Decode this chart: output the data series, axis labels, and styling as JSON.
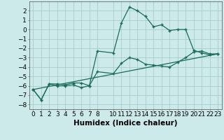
{
  "xlabel": "Humidex (Indice chaleur)",
  "background_color": "#cceaea",
  "grid_color": "#aacccc",
  "line_color": "#1a6b5a",
  "series1_x": [
    0,
    1,
    2,
    3,
    4,
    5,
    6,
    7,
    8,
    10,
    11,
    12,
    13,
    14,
    15,
    16,
    17,
    18,
    19,
    20,
    21,
    22,
    23
  ],
  "series1_y": [
    -6.4,
    -7.5,
    -5.8,
    -5.8,
    -5.9,
    -5.7,
    -5.7,
    -6.0,
    -2.3,
    -2.5,
    0.7,
    2.4,
    2.0,
    1.4,
    0.3,
    0.5,
    -0.1,
    0.0,
    0.0,
    -2.2,
    -2.5,
    -2.7,
    -2.6
  ],
  "series2_x": [
    0,
    1,
    2,
    3,
    4,
    5,
    6,
    7,
    8,
    10,
    11,
    12,
    13,
    14,
    15,
    16,
    17,
    18,
    19,
    20,
    21,
    22,
    23
  ],
  "series2_y": [
    -6.4,
    -7.5,
    -5.8,
    -6.0,
    -6.0,
    -5.9,
    -6.2,
    -6.0,
    -4.5,
    -4.7,
    -3.6,
    -3.0,
    -3.2,
    -3.7,
    -3.8,
    -3.9,
    -4.0,
    -3.5,
    -3.0,
    -2.4,
    -2.3,
    -2.6,
    -2.6
  ],
  "series3_x": [
    0,
    23
  ],
  "series3_y": [
    -6.4,
    -2.6
  ],
  "ylim": [
    -8.5,
    3.0
  ],
  "xlim": [
    -0.5,
    23.5
  ],
  "yticks": [
    2,
    1,
    0,
    -1,
    -2,
    -3,
    -4,
    -5,
    -6,
    -7,
    -8
  ],
  "xticks": [
    0,
    1,
    2,
    3,
    4,
    5,
    6,
    7,
    8,
    10,
    11,
    12,
    13,
    14,
    15,
    16,
    17,
    18,
    19,
    20,
    21,
    22,
    23
  ],
  "tick_fontsize": 6.5,
  "xlabel_fontsize": 7.5
}
